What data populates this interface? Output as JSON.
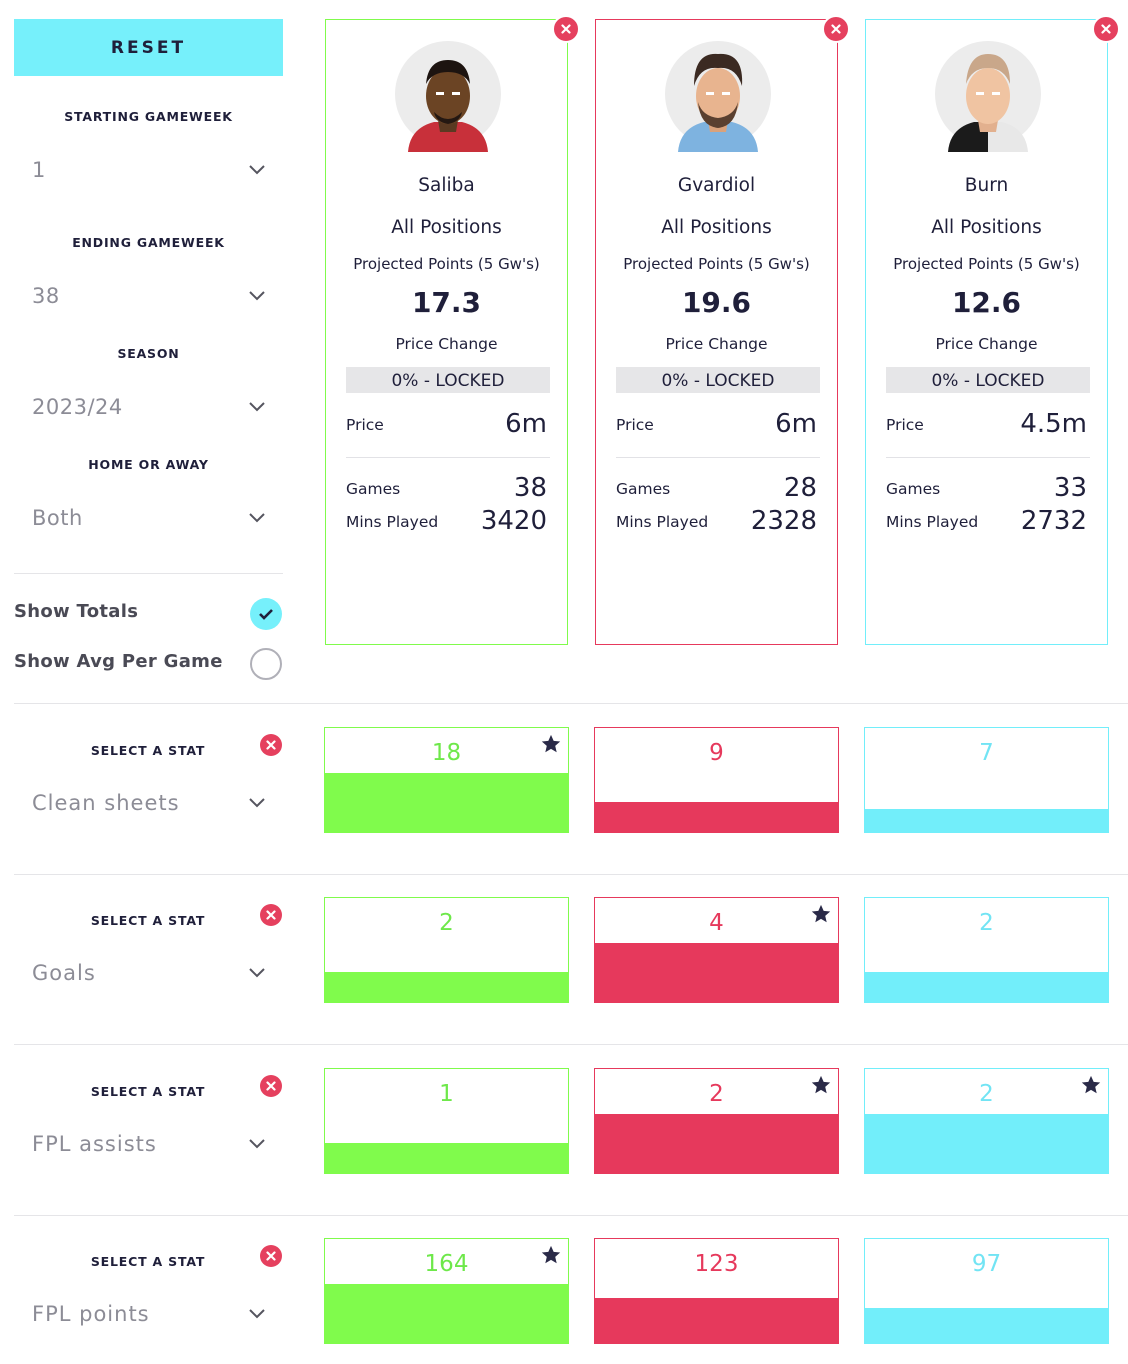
{
  "sidebar": {
    "reset_label": "RESET",
    "starting_gameweek": {
      "label": "STARTING GAMEWEEK",
      "value": "1"
    },
    "ending_gameweek": {
      "label": "ENDING GAMEWEEK",
      "value": "38"
    },
    "season": {
      "label": "SEASON",
      "value": "2023/24"
    },
    "home_or_away": {
      "label": "HOME OR AWAY",
      "value": "Both"
    },
    "show_totals": {
      "label": "Show Totals",
      "checked": true
    },
    "show_avg": {
      "label": "Show Avg Per Game",
      "checked": false
    }
  },
  "players": [
    {
      "name": "Saliba",
      "position": "All Positions",
      "projected_label": "Projected Points (5 Gw's)",
      "projected": "17.3",
      "price_change_label": "Price Change",
      "price_change": "0% - LOCKED",
      "price_label": "Price",
      "price": "6m",
      "games_label": "Games",
      "games": "38",
      "mins_label": "Mins Played",
      "mins": "3420",
      "color": "#80fb4c",
      "number_color": "#6ee84a"
    },
    {
      "name": "Gvardiol",
      "position": "All Positions",
      "projected_label": "Projected Points (5 Gw's)",
      "projected": "19.6",
      "price_change_label": "Price Change",
      "price_change": "0% - LOCKED",
      "price_label": "Price",
      "price": "6m",
      "games_label": "Games",
      "games": "28",
      "mins_label": "Mins Played",
      "mins": "2328",
      "color": "#e6395c",
      "number_color": "#e6395c"
    },
    {
      "name": "Burn",
      "position": "All Positions",
      "projected_label": "Projected Points (5 Gw's)",
      "projected": "12.6",
      "price_change_label": "Price Change",
      "price_change": "0% - LOCKED",
      "price_label": "Price",
      "price": "4.5m",
      "games_label": "Games",
      "games": "33",
      "mins_label": "Mins Played",
      "mins": "2732",
      "color": "#72eefa",
      "number_color": "#72e4f4"
    }
  ],
  "stats": [
    {
      "label": "SELECT A STAT",
      "stat": "Clean sheets",
      "values": [
        "18",
        "9",
        "7"
      ],
      "fill_fraction": [
        0.57,
        0.29,
        0.22
      ],
      "best": [
        true,
        false,
        false
      ]
    },
    {
      "label": "SELECT A STAT",
      "stat": "Goals",
      "values": [
        "2",
        "4",
        "2"
      ],
      "fill_fraction": [
        0.29,
        0.57,
        0.29
      ],
      "best": [
        false,
        true,
        false
      ]
    },
    {
      "label": "SELECT A STAT",
      "stat": "FPL assists",
      "values": [
        "1",
        "2",
        "2"
      ],
      "fill_fraction": [
        0.29,
        0.57,
        0.57
      ],
      "best": [
        false,
        true,
        true
      ]
    },
    {
      "label": "SELECT A STAT",
      "stat": "FPL points",
      "values": [
        "164",
        "123",
        "97"
      ],
      "fill_fraction": [
        0.57,
        0.43,
        0.34
      ],
      "best": [
        true,
        false,
        false
      ]
    }
  ],
  "icons": {
    "close": "close-circle-icon",
    "chevron": "chevron-down-icon",
    "star": "star-icon",
    "check": "check-icon"
  }
}
